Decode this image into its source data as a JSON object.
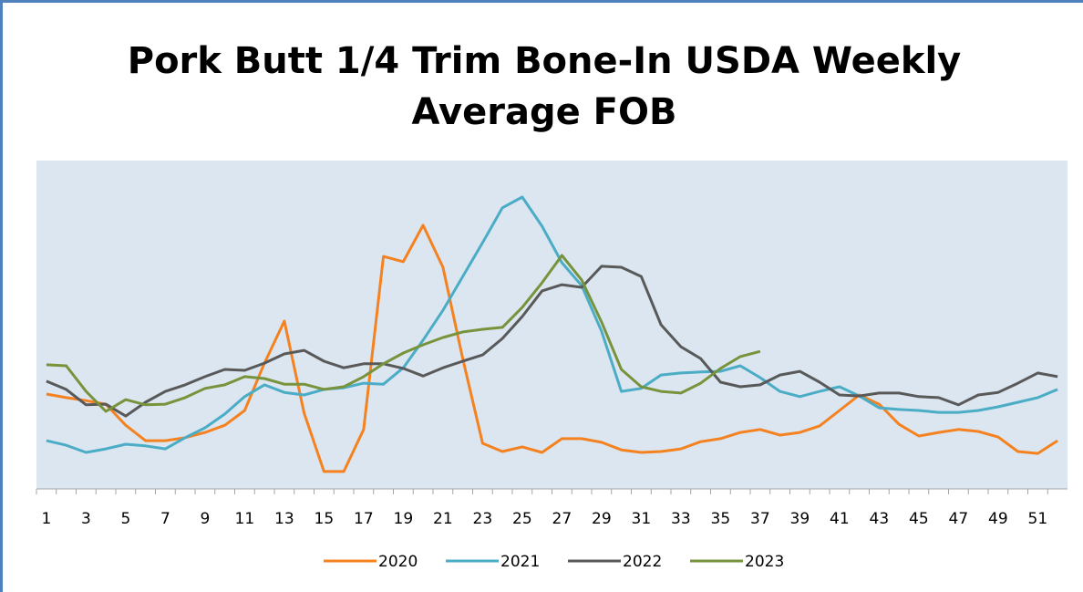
{
  "chart_data": {
    "type": "line",
    "title": "Pork Butt 1/4 Trim Bone-In USDA Weekly Average FOB",
    "categories": [
      1,
      null,
      3,
      null,
      5,
      null,
      7,
      null,
      9,
      null,
      11,
      null,
      13,
      null,
      15,
      null,
      17,
      null,
      19,
      null,
      21,
      null,
      23,
      null,
      25,
      null,
      27,
      null,
      29,
      null,
      31,
      null,
      33,
      null,
      35,
      null,
      37,
      null,
      39,
      null,
      41,
      null,
      43,
      null,
      45,
      null,
      47,
      null,
      49,
      null,
      51,
      null
    ],
    "ylim": [
      0,
      100
    ],
    "legend": "bottom",
    "series": [
      {
        "name": "2020",
        "color": "#f58220",
        "values": [
          28.9,
          27.8,
          26.9,
          25.8,
          19.4,
          14.7,
          14.7,
          15.6,
          17.2,
          19.4,
          23.9,
          38.3,
          51.1,
          23.1,
          5.3,
          5.3,
          18.1,
          70.8,
          69.2,
          80.3,
          67.5,
          39.7,
          13.9,
          11.4,
          12.8,
          11.1,
          15.3,
          15.3,
          14.2,
          11.9,
          11.1,
          11.4,
          12.2,
          14.4,
          15.3,
          17.2,
          18.1,
          16.4,
          17.2,
          19.2,
          23.9,
          28.6,
          25.8,
          19.7,
          16.1,
          17.2,
          18.1,
          17.5,
          15.8,
          11.4,
          10.8,
          14.7
        ]
      },
      {
        "name": "2021",
        "color": "#4bacc6",
        "values": [
          14.7,
          13.3,
          11.1,
          12.2,
          13.6,
          13.1,
          12.2,
          15.6,
          18.6,
          22.8,
          28.1,
          31.7,
          29.4,
          28.6,
          30.3,
          30.8,
          32.2,
          31.9,
          36.9,
          45.3,
          54.4,
          64.7,
          75,
          85.6,
          88.9,
          80,
          68.9,
          61.9,
          48,
          29.7,
          30.6,
          34.7,
          35.3,
          35.6,
          35.8,
          37.5,
          33.9,
          29.7,
          28.1,
          29.7,
          31.1,
          28.3,
          24.7,
          24.2,
          23.9,
          23.3,
          23.3,
          23.9,
          25,
          26.4,
          27.8,
          30.3
        ]
      },
      {
        "name": "2022",
        "color": "#595959",
        "values": [
          32.8,
          30.3,
          25.6,
          25.8,
          22.2,
          26.4,
          29.7,
          31.7,
          34.2,
          36.4,
          36.1,
          38.3,
          41.1,
          42.2,
          38.9,
          36.9,
          38.1,
          38.1,
          36.7,
          34.4,
          36.9,
          38.9,
          40.8,
          45.8,
          52.5,
          60.3,
          62.2,
          61.4,
          67.8,
          67.5,
          64.7,
          50,
          43.3,
          39.7,
          32.5,
          31.1,
          31.7,
          34.7,
          35.8,
          32.5,
          28.6,
          28.3,
          29.2,
          29.2,
          28.1,
          27.8,
          25.6,
          28.6,
          29.4,
          32.2,
          35.3,
          34.2
        ]
      },
      {
        "name": "2023",
        "color": "#77933c",
        "values": [
          37.8,
          37.5,
          29.7,
          23.6,
          27.2,
          25.6,
          25.8,
          27.8,
          30.6,
          31.7,
          34.2,
          33.6,
          31.9,
          31.9,
          30.3,
          31.1,
          34.2,
          38.1,
          41.4,
          43.9,
          46.1,
          47.8,
          48.6,
          49.2,
          55.3,
          62.8,
          71.1,
          63.6,
          50.8,
          36.4,
          31.1,
          29.7,
          29.2,
          32.2,
          36.7,
          40.3,
          41.9,
          null,
          null,
          null,
          null,
          null,
          null,
          null,
          null,
          null,
          null,
          null,
          null,
          null,
          null,
          null
        ]
      }
    ]
  }
}
